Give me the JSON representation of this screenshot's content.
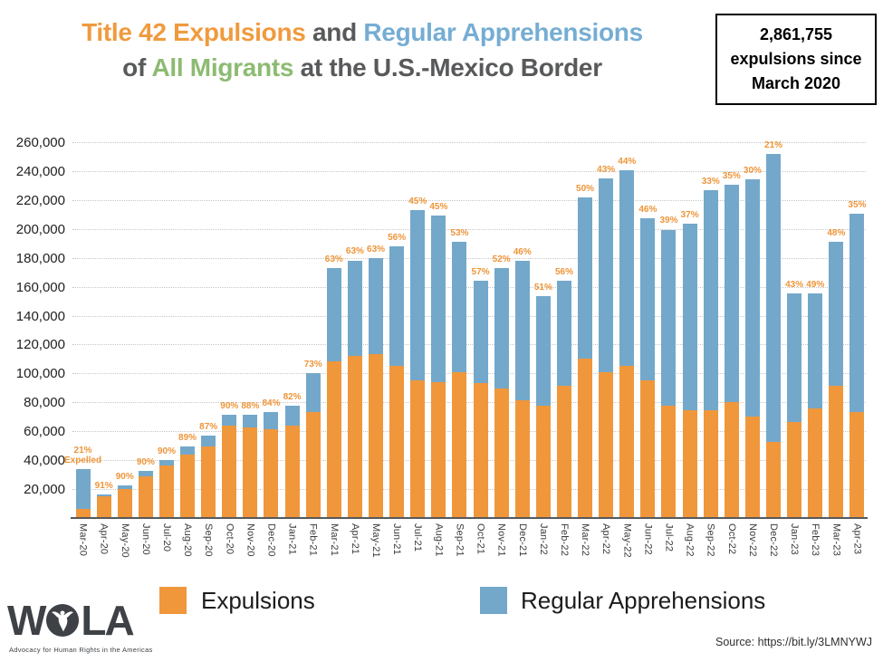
{
  "title": {
    "part1": "Title 42 Expulsions",
    "and": " and ",
    "part2": "Regular Apprehensions",
    "of": "of ",
    "part3": "All Migrants",
    "part4": " at the U.S.-Mexico Border"
  },
  "stat_box": {
    "line1": "2,861,755",
    "line2": "expulsions since",
    "line3": "March 2020"
  },
  "colors": {
    "expulsions": "#F0973B",
    "apprehensions": "#73A8CA",
    "title_orange": "#F09A3E",
    "title_blue": "#75ADD3",
    "title_green": "#8CBB72",
    "title_gray": "#58595B",
    "pct_label": "#EE9539"
  },
  "chart_data": {
    "type": "bar",
    "stacked": true,
    "grid": "horizontal dotted",
    "ylim": [
      0,
      266000
    ],
    "ytick_step": 20000,
    "yticks": [
      {
        "v": 20000,
        "label": "20,000"
      },
      {
        "v": 40000,
        "label": "40,000"
      },
      {
        "v": 60000,
        "label": "60,000"
      },
      {
        "v": 80000,
        "label": "80,000"
      },
      {
        "v": 100000,
        "label": "100,000"
      },
      {
        "v": 120000,
        "label": "120,000"
      },
      {
        "v": 140000,
        "label": "140,000"
      },
      {
        "v": 160000,
        "label": "160,000"
      },
      {
        "v": 180000,
        "label": "180,000"
      },
      {
        "v": 200000,
        "label": "200,000"
      },
      {
        "v": 220000,
        "label": "220,000"
      },
      {
        "v": 240000,
        "label": "240,000"
      },
      {
        "v": 260000,
        "label": "260,000"
      }
    ],
    "categories": [
      "Mar-20",
      "Apr-20",
      "May-20",
      "Jun-20",
      "Jul-20",
      "Aug-20",
      "Sep-20",
      "Oct-20",
      "Nov-20",
      "Dec-20",
      "Jan-21",
      "Feb-21",
      "Mar-21",
      "Apr-21",
      "May-21",
      "Jun-21",
      "Jul-21",
      "Aug-21",
      "Sep-21",
      "Oct-21",
      "Nov-21",
      "Dec-21",
      "Jan-22",
      "Feb-22",
      "Mar-22",
      "Apr-22",
      "May-22",
      "Jun-22",
      "Jul-22",
      "Aug-22",
      "Sep-22",
      "Oct-22",
      "Nov-22",
      "Dec-22",
      "Jan-23",
      "Feb-23",
      "Mar-23",
      "Apr-23"
    ],
    "series": [
      {
        "name": "Expulsions",
        "color": "#F0973B",
        "values": [
          7200,
          15600,
          20900,
          29700,
          36800,
          44500,
          50200,
          64700,
          63400,
          62200,
          64300,
          73800,
          109200,
          112700,
          113800,
          105700,
          96100,
          94400,
          101800,
          93900,
          90300,
          82200,
          78500,
          92400,
          111200,
          101400,
          106100,
          95600,
          78100,
          75500,
          75100,
          81000,
          70500,
          53000,
          67200,
          76500,
          92100,
          74000
        ]
      },
      {
        "name": "Regular Apprehensions",
        "color": "#73A8CA",
        "values": [
          27300,
          1500,
          2300,
          3300,
          4100,
          5500,
          7500,
          7200,
          8700,
          11800,
          14100,
          27300,
          64100,
          66200,
          66800,
          83100,
          117500,
          115400,
          90200,
          70900,
          83300,
          96600,
          75400,
          72600,
          111100,
          134400,
          135000,
          112200,
          122100,
          128600,
          152400,
          150500,
          164400,
          199300,
          89100,
          79600,
          99800,
          137400
        ]
      }
    ],
    "bar_labels": [
      "21%",
      "91%",
      "90%",
      "90%",
      "90%",
      "89%",
      "87%",
      "90%",
      "88%",
      "84%",
      "82%",
      "73%",
      "63%",
      "63%",
      "63%",
      "56%",
      "45%",
      "45%",
      "53%",
      "57%",
      "52%",
      "46%",
      "51%",
      "56%",
      "50%",
      "43%",
      "44%",
      "46%",
      "39%",
      "37%",
      "33%",
      "35%",
      "30%",
      "21%",
      "43%",
      "49%",
      "48%",
      "35%"
    ],
    "first_bar_annotation": {
      "line1": "21%",
      "line2": "Expelled"
    },
    "legend_position": "bottom"
  },
  "legend": [
    {
      "label": "Expulsions",
      "color": "#F0973B"
    },
    {
      "label": "Regular Apprehensions",
      "color": "#73A8CA"
    }
  ],
  "footer": {
    "logo_w": "W",
    "logo_la": "LA",
    "tagline": "Advocacy for Human Rights in the Americas",
    "source": "Source: https://bit.ly/3LMNYWJ"
  }
}
